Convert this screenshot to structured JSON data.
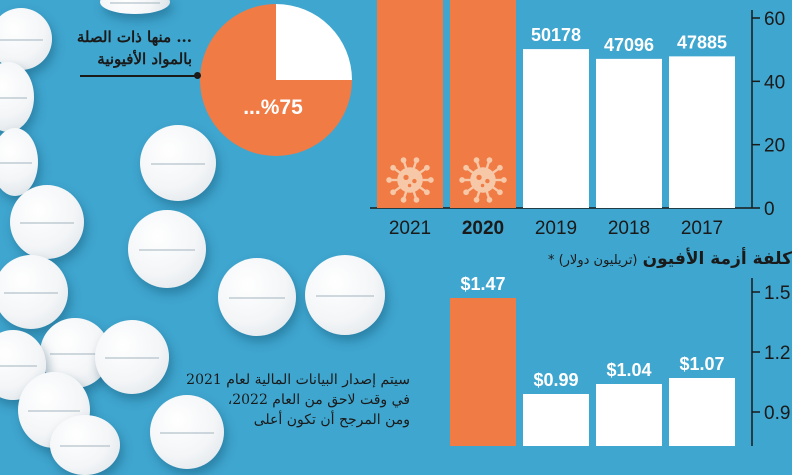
{
  "pie_note": {
    "line1": "... منها ذات الصلة",
    "line2": "بالمواد الأفيونية",
    "percent_label": "...%75",
    "share": 0.75
  },
  "cost_title": {
    "main": "كلفة أزمة الأفيون",
    "sub": "(تريليون دولار) *"
  },
  "footnote": {
    "line1": "سيتم إصدار البيانات المالية لعام 2021",
    "line2": "في وقت لاحق من العام 2022،",
    "line3": "ومن المرجح أن تكون أعلى"
  },
  "colors": {
    "background": "#3fa6cf",
    "highlight": "#f07b45",
    "bar": "#ffffff",
    "text": "#1a1a1a",
    "virus_icon": "#f6c8a8"
  },
  "icons": [
    "virus-icon"
  ],
  "chart_data": [
    {
      "type": "bar",
      "categories": [
        "2017",
        "2018",
        "2019",
        "2020",
        "2021"
      ],
      "values": [
        47.885,
        47.096,
        50.178,
        null,
        null
      ],
      "data_labels": [
        "47885",
        "47096",
        "50178",
        "",
        ""
      ],
      "highlighted": [
        "2020",
        "2021"
      ],
      "bold_category": "2020",
      "ylim": [
        0,
        60
      ],
      "yticks": [
        "0",
        "20",
        "40",
        "60"
      ],
      "axis_side": "right"
    },
    {
      "type": "bar",
      "categories": [
        "2017",
        "2018",
        "2019",
        "2020"
      ],
      "values": [
        1.07,
        1.04,
        0.99,
        1.47
      ],
      "data_labels": [
        "$1.07",
        "$1.04",
        "$0.99",
        "$1.47"
      ],
      "highlighted": [
        "2020"
      ],
      "yticks": [
        "0.9",
        "1.2",
        "1.5"
      ],
      "axis_side": "right"
    }
  ]
}
